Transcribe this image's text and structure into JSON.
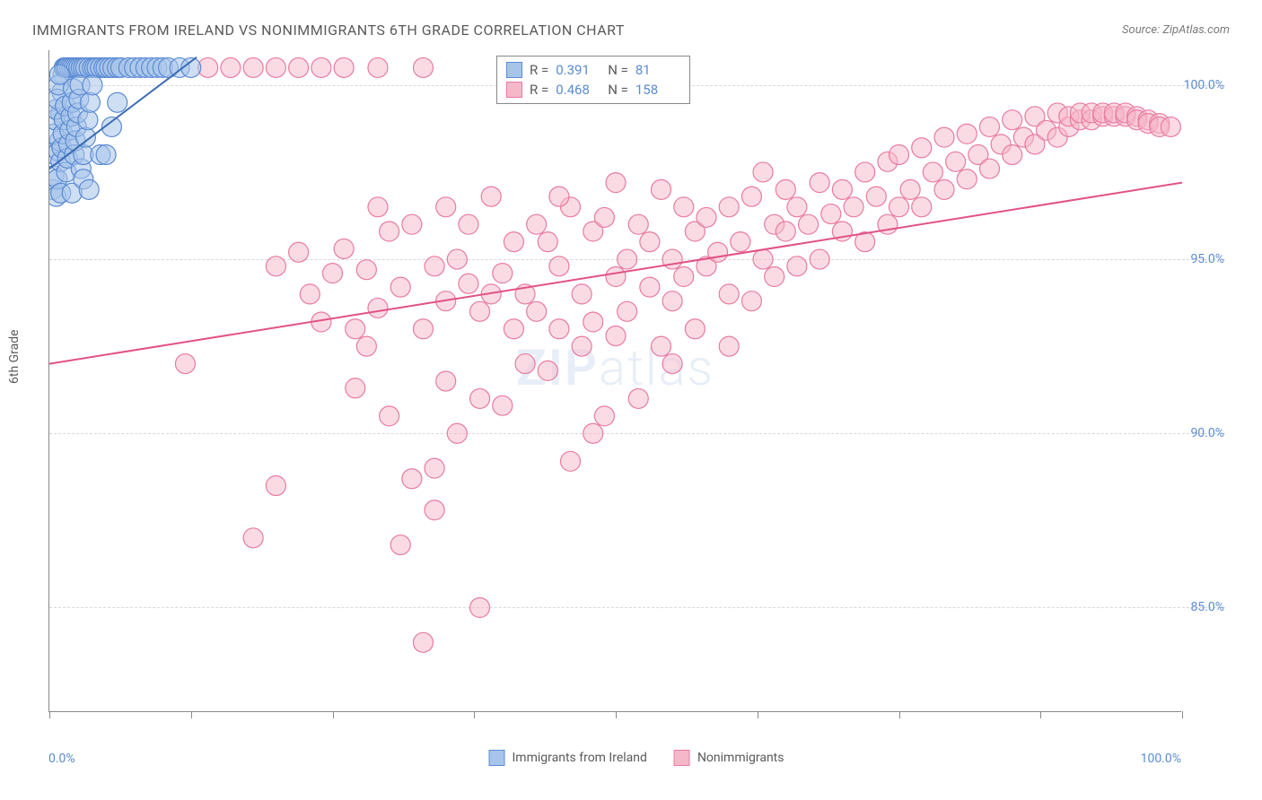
{
  "title": "IMMIGRANTS FROM IRELAND VS NONIMMIGRANTS 6TH GRADE CORRELATION CHART",
  "source": "Source: ZipAtlas.com",
  "watermark": "ZIPatlas",
  "chart": {
    "type": "scatter",
    "ylabel": "6th Grade",
    "xlim": [
      0,
      100
    ],
    "ylim": [
      82,
      101
    ],
    "x_left_label": "0.0%",
    "x_right_label": "100.0%",
    "y_ticks": [
      85.0,
      90.0,
      95.0,
      100.0
    ],
    "y_tick_labels": [
      "85.0%",
      "90.0%",
      "95.0%",
      "100.0%"
    ],
    "x_tick_positions": [
      0,
      12.5,
      25,
      37.5,
      50,
      62.5,
      75,
      87.5,
      100
    ],
    "grid_color": "#d8d8d8",
    "border_color": "#888888",
    "background_color": "#ffffff",
    "label_fontsize": 14,
    "tick_color": "#5b8bd4",
    "series": [
      {
        "name": "Immigrants from Ireland",
        "fill_color": "#a7c5ea",
        "stroke_color": "#5b8bd4",
        "fill_opacity": 0.55,
        "marker_radius": 11,
        "line_color": "#3d6db5",
        "line_width": 2,
        "regression": {
          "x1": 0,
          "y1": 97.6,
          "x2": 13,
          "y2": 100.8
        },
        "R": "0.391",
        "N": "81",
        "points": [
          [
            0.3,
            97.0
          ],
          [
            0.4,
            97.4
          ],
          [
            0.5,
            98.0
          ],
          [
            0.6,
            96.8
          ],
          [
            0.7,
            97.3
          ],
          [
            0.8,
            98.1
          ],
          [
            0.9,
            98.4
          ],
          [
            1.0,
            99.2
          ],
          [
            1.1,
            99.8
          ],
          [
            1.2,
            100.3
          ],
          [
            1.3,
            100.5
          ],
          [
            1.4,
            100.5
          ],
          [
            1.5,
            100.5
          ],
          [
            1.6,
            100.5
          ],
          [
            1.8,
            100.5
          ],
          [
            2.0,
            100.5
          ],
          [
            2.2,
            100.5
          ],
          [
            2.4,
            100.5
          ],
          [
            2.6,
            100.5
          ],
          [
            2.8,
            100.5
          ],
          [
            3.0,
            100.5
          ],
          [
            3.2,
            100.5
          ],
          [
            3.5,
            100.5
          ],
          [
            3.8,
            100.5
          ],
          [
            4.0,
            100.5
          ],
          [
            4.2,
            100.5
          ],
          [
            4.5,
            100.5
          ],
          [
            4.8,
            100.5
          ],
          [
            5.0,
            100.5
          ],
          [
            5.3,
            100.5
          ],
          [
            5.6,
            100.5
          ],
          [
            6.0,
            100.5
          ],
          [
            6.3,
            100.5
          ],
          [
            0.4,
            98.6
          ],
          [
            0.5,
            99.0
          ],
          [
            0.6,
            99.3
          ],
          [
            0.7,
            99.6
          ],
          [
            0.8,
            100.0
          ],
          [
            0.9,
            100.3
          ],
          [
            1.0,
            97.8
          ],
          [
            1.1,
            98.2
          ],
          [
            1.2,
            98.6
          ],
          [
            1.3,
            99.0
          ],
          [
            1.4,
            99.4
          ],
          [
            1.5,
            97.5
          ],
          [
            1.6,
            97.9
          ],
          [
            1.7,
            98.3
          ],
          [
            1.8,
            98.7
          ],
          [
            1.9,
            99.1
          ],
          [
            2.0,
            99.5
          ],
          [
            2.1,
            99.9
          ],
          [
            2.2,
            98.0
          ],
          [
            2.3,
            98.4
          ],
          [
            2.4,
            98.8
          ],
          [
            2.5,
            99.2
          ],
          [
            2.6,
            99.6
          ],
          [
            2.7,
            100.0
          ],
          [
            2.8,
            97.6
          ],
          [
            3.0,
            98.0
          ],
          [
            3.2,
            98.5
          ],
          [
            3.4,
            99.0
          ],
          [
            3.6,
            99.5
          ],
          [
            3.8,
            100.0
          ],
          [
            4.5,
            98.0
          ],
          [
            5.0,
            98.0
          ],
          [
            5.5,
            98.8
          ],
          [
            6.0,
            99.5
          ],
          [
            7.0,
            100.5
          ],
          [
            7.5,
            100.5
          ],
          [
            8.0,
            100.5
          ],
          [
            8.5,
            100.5
          ],
          [
            9.0,
            100.5
          ],
          [
            9.5,
            100.5
          ],
          [
            10.0,
            100.5
          ],
          [
            10.5,
            100.5
          ],
          [
            11.5,
            100.5
          ],
          [
            12.5,
            100.5
          ],
          [
            1.0,
            96.9
          ],
          [
            2.0,
            96.9
          ],
          [
            3.0,
            97.3
          ],
          [
            3.5,
            97.0
          ]
        ]
      },
      {
        "name": "Nonimmigrants",
        "fill_color": "#f5b8c9",
        "stroke_color": "#e87ba0",
        "fill_opacity": 0.5,
        "marker_radius": 11,
        "line_color": "#e15284",
        "line_width": 2,
        "regression": {
          "x1": 0,
          "y1": 92.0,
          "x2": 100,
          "y2": 97.2
        },
        "R": "0.468",
        "N": "158",
        "points": [
          [
            14,
            100.5
          ],
          [
            16,
            100.5
          ],
          [
            18,
            100.5
          ],
          [
            20,
            100.5
          ],
          [
            22,
            100.5
          ],
          [
            24,
            100.5
          ],
          [
            26,
            100.5
          ],
          [
            29,
            100.5
          ],
          [
            33,
            100.5
          ],
          [
            12,
            92.0
          ],
          [
            18,
            87.0
          ],
          [
            20,
            88.5
          ],
          [
            20,
            94.8
          ],
          [
            22,
            95.2
          ],
          [
            23,
            94.0
          ],
          [
            24,
            93.2
          ],
          [
            25,
            94.6
          ],
          [
            26,
            95.3
          ],
          [
            27,
            93.0
          ],
          [
            27,
            91.3
          ],
          [
            28,
            92.5
          ],
          [
            28,
            94.7
          ],
          [
            29,
            93.6
          ],
          [
            29,
            96.5
          ],
          [
            30,
            95.8
          ],
          [
            30,
            90.5
          ],
          [
            31,
            86.8
          ],
          [
            31,
            94.2
          ],
          [
            32,
            88.7
          ],
          [
            32,
            96.0
          ],
          [
            33,
            84.0
          ],
          [
            33,
            93.0
          ],
          [
            34,
            89.0
          ],
          [
            34,
            87.8
          ],
          [
            34,
            94.8
          ],
          [
            35,
            91.5
          ],
          [
            35,
            93.8
          ],
          [
            35,
            96.5
          ],
          [
            36,
            95.0
          ],
          [
            36,
            90.0
          ],
          [
            37,
            94.3
          ],
          [
            37,
            96.0
          ],
          [
            38,
            93.5
          ],
          [
            38,
            91.0
          ],
          [
            38,
            85.0
          ],
          [
            39,
            94.0
          ],
          [
            39,
            96.8
          ],
          [
            40,
            90.8
          ],
          [
            40,
            94.6
          ],
          [
            41,
            93.0
          ],
          [
            41,
            95.5
          ],
          [
            42,
            92.0
          ],
          [
            42,
            94.0
          ],
          [
            43,
            96.0
          ],
          [
            43,
            93.5
          ],
          [
            44,
            95.5
          ],
          [
            44,
            91.8
          ],
          [
            45,
            94.8
          ],
          [
            45,
            93.0
          ],
          [
            46,
            89.2
          ],
          [
            46,
            96.5
          ],
          [
            47,
            92.5
          ],
          [
            47,
            94.0
          ],
          [
            48,
            95.8
          ],
          [
            48,
            93.2
          ],
          [
            49,
            90.5
          ],
          [
            49,
            96.2
          ],
          [
            50,
            94.5
          ],
          [
            50,
            92.8
          ],
          [
            51,
            95.0
          ],
          [
            51,
            93.5
          ],
          [
            52,
            91.0
          ],
          [
            52,
            96.0
          ],
          [
            53,
            94.2
          ],
          [
            53,
            95.5
          ],
          [
            54,
            92.5
          ],
          [
            54,
            97.0
          ],
          [
            55,
            95.0
          ],
          [
            55,
            93.8
          ],
          [
            56,
            96.5
          ],
          [
            56,
            94.5
          ],
          [
            57,
            93.0
          ],
          [
            57,
            95.8
          ],
          [
            58,
            94.8
          ],
          [
            58,
            96.2
          ],
          [
            59,
            95.2
          ],
          [
            60,
            94.0
          ],
          [
            60,
            96.5
          ],
          [
            61,
            95.5
          ],
          [
            62,
            93.8
          ],
          [
            62,
            96.8
          ],
          [
            63,
            95.0
          ],
          [
            63,
            97.5
          ],
          [
            64,
            94.5
          ],
          [
            64,
            96.0
          ],
          [
            65,
            95.8
          ],
          [
            65,
            97.0
          ],
          [
            66,
            94.8
          ],
          [
            66,
            96.5
          ],
          [
            67,
            96.0
          ],
          [
            68,
            95.0
          ],
          [
            68,
            97.2
          ],
          [
            69,
            96.3
          ],
          [
            70,
            95.8
          ],
          [
            70,
            97.0
          ],
          [
            71,
            96.5
          ],
          [
            72,
            95.5
          ],
          [
            72,
            97.5
          ],
          [
            73,
            96.8
          ],
          [
            74,
            96.0
          ],
          [
            74,
            97.8
          ],
          [
            75,
            96.5
          ],
          [
            75,
            98.0
          ],
          [
            76,
            97.0
          ],
          [
            77,
            96.5
          ],
          [
            77,
            98.2
          ],
          [
            78,
            97.5
          ],
          [
            79,
            97.0
          ],
          [
            79,
            98.5
          ],
          [
            80,
            97.8
          ],
          [
            81,
            97.3
          ],
          [
            81,
            98.6
          ],
          [
            82,
            98.0
          ],
          [
            83,
            97.6
          ],
          [
            83,
            98.8
          ],
          [
            84,
            98.3
          ],
          [
            85,
            98.0
          ],
          [
            85,
            99.0
          ],
          [
            86,
            98.5
          ],
          [
            87,
            98.3
          ],
          [
            87,
            99.1
          ],
          [
            88,
            98.7
          ],
          [
            89,
            98.5
          ],
          [
            89,
            99.2
          ],
          [
            90,
            98.8
          ],
          [
            90,
            99.1
          ],
          [
            91,
            99.0
          ],
          [
            91,
            99.2
          ],
          [
            92,
            99.0
          ],
          [
            92,
            99.2
          ],
          [
            93,
            99.1
          ],
          [
            93,
            99.2
          ],
          [
            94,
            99.1
          ],
          [
            94,
            99.2
          ],
          [
            95,
            99.1
          ],
          [
            95,
            99.2
          ],
          [
            96,
            99.1
          ],
          [
            96,
            99.0
          ],
          [
            97,
            99.0
          ],
          [
            97,
            98.9
          ],
          [
            98,
            98.9
          ],
          [
            98,
            98.8
          ],
          [
            99,
            98.8
          ],
          [
            50,
            97.2
          ],
          [
            55,
            92.0
          ],
          [
            60,
            92.5
          ],
          [
            45,
            96.8
          ],
          [
            48,
            90.0
          ]
        ]
      }
    ]
  },
  "legend": {
    "items": [
      {
        "label": "Immigrants from Ireland",
        "fill": "#a7c5ea",
        "stroke": "#5b8bd4"
      },
      {
        "label": "Nonimmigrants",
        "fill": "#f5b8c9",
        "stroke": "#e87ba0"
      }
    ]
  }
}
